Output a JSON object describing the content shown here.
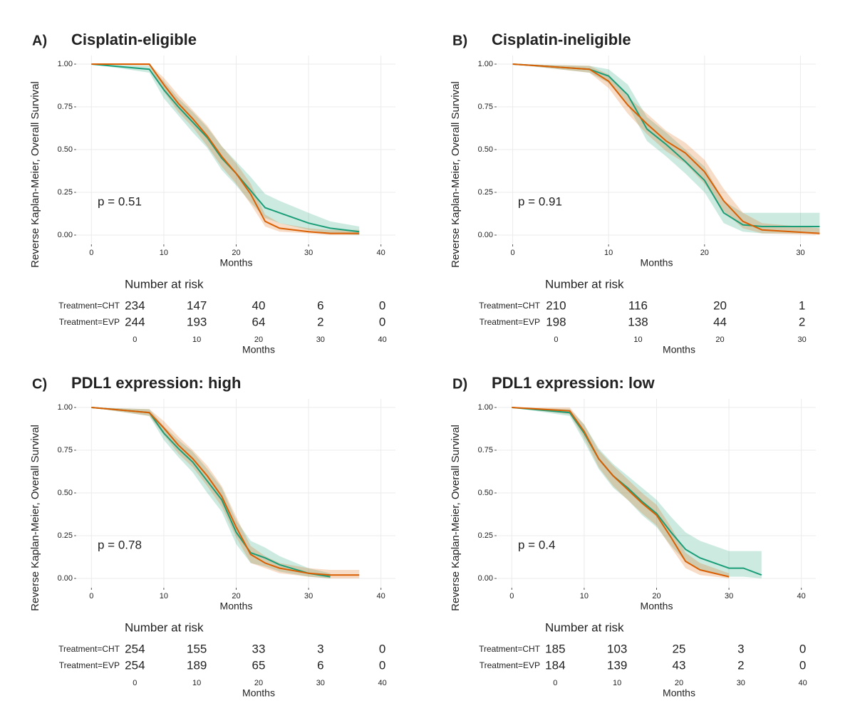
{
  "chart_data": [
    {
      "type": "line",
      "panel": "A)",
      "title": "Cisplatin-eligible",
      "ylabel": "Reverse Kaplan-Meier, Overall Survival",
      "xlabel": "Months",
      "annotation": "p = 0.51",
      "xlim": [
        -2,
        42
      ],
      "ylim": [
        -0.05,
        1.05
      ],
      "xticks": [
        0,
        10,
        20,
        30,
        40
      ],
      "yticks": [
        {
          "value": 0,
          "label": "0.00"
        },
        {
          "value": 0.25,
          "label": "0.25"
        },
        {
          "value": 0.5,
          "label": "0.50"
        },
        {
          "value": 0.75,
          "label": "0.75"
        },
        {
          "value": 1,
          "label": "1.00"
        }
      ],
      "x": [
        0,
        8,
        10,
        12,
        14,
        16,
        18,
        20,
        22,
        24,
        26,
        30,
        33,
        37
      ],
      "series": [
        {
          "name": "Treatment=CHT",
          "color": "#1b9e77",
          "values": [
            1,
            0.97,
            0.85,
            0.75,
            0.66,
            0.57,
            0.45,
            0.36,
            0.26,
            0.16,
            0.13,
            0.07,
            0.04,
            0.02
          ],
          "upper": [
            1,
            0.99,
            0.9,
            0.8,
            0.72,
            0.63,
            0.52,
            0.43,
            0.34,
            0.24,
            0.2,
            0.13,
            0.08,
            0.05
          ],
          "lower": [
            1,
            0.95,
            0.8,
            0.7,
            0.6,
            0.51,
            0.38,
            0.29,
            0.19,
            0.1,
            0.07,
            0.03,
            0.01,
            0
          ],
          "at_risk": [
            234,
            147,
            40,
            6,
            0
          ]
        },
        {
          "name": "Treatment=EVP",
          "color": "#d95f02",
          "values": [
            1,
            1,
            0.88,
            0.77,
            0.68,
            0.58,
            0.46,
            0.36,
            0.24,
            0.08,
            0.04,
            0.02,
            0.01,
            0.01
          ],
          "upper": [
            1,
            1,
            0.92,
            0.82,
            0.73,
            0.64,
            0.52,
            0.42,
            0.3,
            0.12,
            0.07,
            0.04,
            0.03,
            0.03
          ],
          "lower": [
            1,
            0.99,
            0.84,
            0.72,
            0.63,
            0.52,
            0.4,
            0.3,
            0.18,
            0.05,
            0.02,
            0.01,
            0,
            0
          ],
          "at_risk": [
            244,
            193,
            64,
            2,
            0
          ]
        }
      ],
      "risk_title": "Number at risk",
      "risk_times": [
        0,
        10,
        20,
        30,
        40
      ],
      "risk_xlabel": "Months"
    },
    {
      "type": "line",
      "panel": "B)",
      "title": "Cisplatin-ineligible",
      "ylabel": "Reverse Kaplan-Meier, Overall Survival",
      "xlabel": "Months",
      "annotation": "p = 0.91",
      "xlim": [
        -1.6,
        31.6
      ],
      "ylim": [
        -0.05,
        1.05
      ],
      "xticks": [
        0,
        10,
        20,
        30
      ],
      "yticks": [
        {
          "value": 0,
          "label": "0.00"
        },
        {
          "value": 0.25,
          "label": "0.25"
        },
        {
          "value": 0.5,
          "label": "0.50"
        },
        {
          "value": 0.75,
          "label": "0.75"
        },
        {
          "value": 1,
          "label": "1.00"
        }
      ],
      "x": [
        0,
        8,
        10,
        12,
        14,
        16,
        18,
        20,
        22,
        24,
        26,
        32
      ],
      "series": [
        {
          "name": "Treatment=CHT",
          "color": "#1b9e77",
          "values": [
            1,
            0.97,
            0.93,
            0.82,
            0.62,
            0.53,
            0.43,
            0.32,
            0.13,
            0.06,
            0.05,
            0.05
          ],
          "upper": [
            1,
            0.99,
            0.97,
            0.88,
            0.69,
            0.6,
            0.5,
            0.4,
            0.2,
            0.13,
            0.13,
            0.13
          ],
          "lower": [
            1,
            0.95,
            0.89,
            0.76,
            0.55,
            0.46,
            0.36,
            0.25,
            0.07,
            0.02,
            0.01,
            0.01
          ],
          "at_risk": [
            210,
            116,
            20,
            1
          ]
        },
        {
          "name": "Treatment=EVP",
          "color": "#d95f02",
          "values": [
            1,
            0.97,
            0.9,
            0.76,
            0.65,
            0.55,
            0.48,
            0.37,
            0.2,
            0.08,
            0.03,
            0.01
          ],
          "upper": [
            1,
            0.99,
            0.94,
            0.81,
            0.71,
            0.61,
            0.54,
            0.44,
            0.27,
            0.13,
            0.07,
            0.04
          ],
          "lower": [
            1,
            0.95,
            0.86,
            0.71,
            0.59,
            0.49,
            0.42,
            0.3,
            0.14,
            0.04,
            0.01,
            0
          ],
          "at_risk": [
            198,
            138,
            44,
            2
          ]
        }
      ],
      "risk_title": "Number at risk",
      "risk_times": [
        0,
        10,
        20,
        30
      ],
      "risk_xlabel": "Months"
    },
    {
      "type": "line",
      "panel": "C)",
      "title": "PDL1 expression: high",
      "ylabel": "Reverse Kaplan-Meier, Overall Survival",
      "xlabel": "Months",
      "annotation": "p = 0.78",
      "xlim": [
        -2,
        42
      ],
      "ylim": [
        -0.05,
        1.05
      ],
      "xticks": [
        0,
        10,
        20,
        30,
        40
      ],
      "yticks": [
        {
          "value": 0,
          "label": "0.00"
        },
        {
          "value": 0.25,
          "label": "0.25"
        },
        {
          "value": 0.5,
          "label": "0.50"
        },
        {
          "value": 0.75,
          "label": "0.75"
        },
        {
          "value": 1,
          "label": "1.00"
        }
      ],
      "x": [
        0,
        8,
        10,
        12,
        14,
        16,
        18,
        20,
        22,
        24,
        26,
        30,
        33,
        37
      ],
      "series": [
        {
          "name": "Treatment=CHT",
          "color": "#1b9e77",
          "values": [
            1,
            0.97,
            0.85,
            0.76,
            0.68,
            0.57,
            0.46,
            0.27,
            0.15,
            0.12,
            0.08,
            0.03,
            0.01,
            null
          ],
          "upper": [
            1,
            0.99,
            0.89,
            0.81,
            0.74,
            0.64,
            0.53,
            0.34,
            0.22,
            0.18,
            0.13,
            0.06,
            0.03,
            null
          ],
          "lower": [
            1,
            0.95,
            0.81,
            0.71,
            0.62,
            0.5,
            0.39,
            0.2,
            0.09,
            0.07,
            0.04,
            0.01,
            0,
            null
          ],
          "at_risk": [
            254,
            155,
            33,
            3,
            0
          ]
        },
        {
          "name": "Treatment=EVP",
          "color": "#d95f02",
          "values": [
            1,
            0.97,
            0.88,
            0.78,
            0.7,
            0.6,
            0.48,
            0.3,
            0.14,
            0.09,
            0.06,
            0.03,
            0.02,
            0.02
          ],
          "upper": [
            1,
            0.99,
            0.92,
            0.83,
            0.75,
            0.66,
            0.54,
            0.36,
            0.19,
            0.13,
            0.09,
            0.06,
            0.05,
            0.05
          ],
          "lower": [
            1,
            0.95,
            0.84,
            0.73,
            0.65,
            0.54,
            0.42,
            0.24,
            0.09,
            0.06,
            0.03,
            0.01,
            0,
            0
          ],
          "at_risk": [
            254,
            189,
            65,
            6,
            0
          ]
        }
      ],
      "risk_title": "Number at risk",
      "risk_times": [
        0,
        10,
        20,
        30,
        40
      ],
      "risk_xlabel": "Months"
    },
    {
      "type": "line",
      "panel": "D)",
      "title": "PDL1 expression: low",
      "ylabel": "Reverse Kaplan-Meier, Overall Survival",
      "xlabel": "Months",
      "annotation": "p = 0.4",
      "xlim": [
        -2,
        42
      ],
      "ylim": [
        -0.05,
        1.05
      ],
      "xticks": [
        0,
        10,
        20,
        30,
        40
      ],
      "yticks": [
        {
          "value": 0,
          "label": "0.00"
        },
        {
          "value": 0.25,
          "label": "0.25"
        },
        {
          "value": 0.5,
          "label": "0.50"
        },
        {
          "value": 0.75,
          "label": "0.75"
        },
        {
          "value": 1,
          "label": "1.00"
        }
      ],
      "x": [
        0,
        8,
        10,
        12,
        14,
        16,
        18,
        20,
        22,
        24,
        26,
        30,
        32,
        34.5
      ],
      "series": [
        {
          "name": "Treatment=CHT",
          "color": "#1b9e77",
          "values": [
            1,
            0.97,
            0.85,
            0.7,
            0.6,
            0.53,
            0.45,
            0.38,
            0.27,
            0.17,
            0.12,
            0.06,
            0.06,
            0.02
          ],
          "upper": [
            1,
            0.99,
            0.9,
            0.76,
            0.67,
            0.6,
            0.53,
            0.46,
            0.36,
            0.27,
            0.22,
            0.16,
            0.16,
            0.16
          ],
          "lower": [
            1,
            0.95,
            0.8,
            0.64,
            0.53,
            0.46,
            0.37,
            0.3,
            0.19,
            0.1,
            0.05,
            0.01,
            0.01,
            0
          ],
          "at_risk": [
            185,
            103,
            25,
            3,
            0
          ]
        },
        {
          "name": "Treatment=EVP",
          "color": "#d95f02",
          "values": [
            1,
            0.98,
            0.86,
            0.7,
            0.6,
            0.52,
            0.44,
            0.37,
            0.24,
            0.1,
            0.05,
            0.01,
            null,
            null
          ],
          "upper": [
            1,
            1,
            0.9,
            0.75,
            0.66,
            0.58,
            0.5,
            0.43,
            0.3,
            0.15,
            0.09,
            0.03,
            null,
            null
          ],
          "lower": [
            1,
            0.96,
            0.82,
            0.65,
            0.54,
            0.46,
            0.38,
            0.31,
            0.18,
            0.06,
            0.02,
            0,
            null,
            null
          ],
          "at_risk": [
            184,
            139,
            43,
            2,
            0
          ]
        }
      ],
      "risk_title": "Number at risk",
      "risk_times": [
        0,
        10,
        20,
        30,
        40
      ],
      "risk_xlabel": "Months"
    }
  ]
}
